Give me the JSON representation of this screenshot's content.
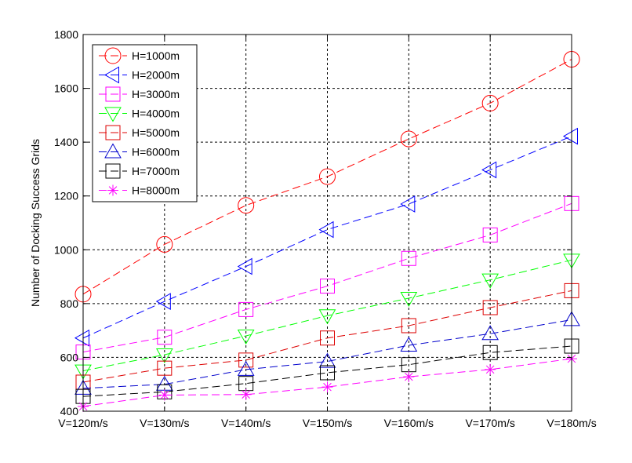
{
  "chart_data": {
    "type": "line",
    "title": "",
    "xlabel": "",
    "ylabel": "Number of Docking Success Grids",
    "categories": [
      "V=120m/s",
      "V=130m/s",
      "V=140m/s",
      "V=150m/s",
      "V=160m/s",
      "V=170m/s",
      "V=180m/s"
    ],
    "ylim": [
      400,
      1800
    ],
    "yticks": [
      400,
      600,
      800,
      1000,
      1200,
      1400,
      1600,
      1800
    ],
    "grid": true,
    "legend_position": "top-left",
    "series": [
      {
        "name": "H=1000m",
        "color": "#ff0000",
        "marker": "circle",
        "values": [
          835,
          1020,
          1165,
          1272,
          1412,
          1545,
          1708
        ]
      },
      {
        "name": "H=2000m",
        "color": "#0000ff",
        "marker": "triangle-left",
        "values": [
          672,
          808,
          938,
          1075,
          1170,
          1297,
          1422
        ]
      },
      {
        "name": "H=3000m",
        "color": "#ff00ff",
        "marker": "square",
        "values": [
          620,
          675,
          778,
          865,
          968,
          1055,
          1172
        ]
      },
      {
        "name": "H=4000m",
        "color": "#00ff00",
        "marker": "triangle-down",
        "values": [
          550,
          610,
          680,
          755,
          820,
          888,
          962
        ]
      },
      {
        "name": "H=5000m",
        "color": "#dd0000",
        "marker": "square",
        "values": [
          508,
          560,
          590,
          672,
          718,
          785,
          848
        ]
      },
      {
        "name": "H=6000m",
        "color": "#0000cc",
        "marker": "triangle-up",
        "values": [
          485,
          500,
          555,
          585,
          645,
          688,
          740
        ]
      },
      {
        "name": "H=7000m",
        "color": "#000000",
        "marker": "square",
        "values": [
          455,
          472,
          503,
          543,
          573,
          618,
          642
        ]
      },
      {
        "name": "H=8000m",
        "color": "#ff00ff",
        "marker": "asterisk",
        "values": [
          418,
          460,
          462,
          490,
          528,
          555,
          595
        ]
      }
    ]
  }
}
